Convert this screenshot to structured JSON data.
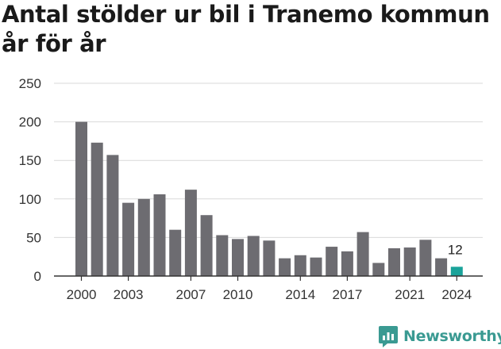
{
  "title": "Antal stölder ur bil i Tranemo kommun år för år",
  "brand": {
    "name": "Newsworthy"
  },
  "colors": {
    "bar": "#6d6c71",
    "highlight": "#1aa39a",
    "grid": "#d9d9d9",
    "axis": "#333333",
    "brand": "#3a9a92"
  },
  "chart_data": {
    "type": "bar",
    "title": "Antal stölder ur bil i Tranemo kommun år för år",
    "xlabel": "",
    "ylabel": "",
    "ylim": [
      0,
      250
    ],
    "yticks": [
      0,
      50,
      100,
      150,
      200,
      250
    ],
    "grid": true,
    "categories": [
      2000,
      2001,
      2002,
      2003,
      2004,
      2005,
      2006,
      2007,
      2008,
      2009,
      2010,
      2011,
      2012,
      2013,
      2014,
      2015,
      2016,
      2017,
      2018,
      2019,
      2020,
      2021,
      2022,
      2023,
      2024
    ],
    "values": [
      200,
      173,
      157,
      95,
      100,
      106,
      60,
      112,
      79,
      53,
      48,
      52,
      46,
      23,
      27,
      24,
      38,
      32,
      57,
      17,
      36,
      37,
      47,
      23,
      12
    ],
    "xtick_labels": [
      "2000",
      "2003",
      "2007",
      "2010",
      "2014",
      "2017",
      "2021",
      "2024"
    ],
    "highlight": {
      "category": 2024,
      "label": "12"
    }
  }
}
